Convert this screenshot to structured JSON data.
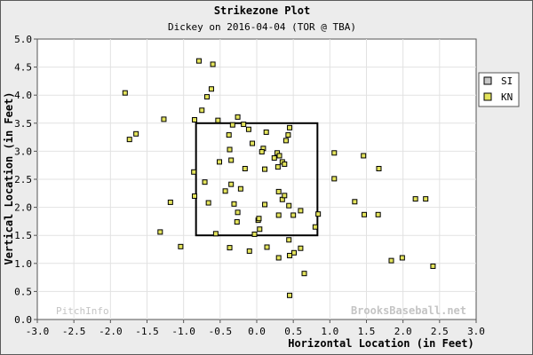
{
  "chart_data": {
    "type": "scatter",
    "title": "Strikezone Plot",
    "subtitle": "Dickey on 2016-04-04 (TOR @ TBA)",
    "xlabel": "Horizontal Location (in Feet)",
    "ylabel": "Vertical Location (in Feet)",
    "xlim": [
      -3.0,
      3.0
    ],
    "ylim": [
      0.0,
      5.0
    ],
    "x_ticks": [
      "-3.0",
      "-2.5",
      "-2.0",
      "-1.5",
      "-1.0",
      "-0.5",
      "0.0",
      "0.5",
      "1.0",
      "1.5",
      "2.0",
      "2.5",
      "3.0"
    ],
    "y_ticks": [
      "0.0",
      "0.5",
      "1.0",
      "1.5",
      "2.0",
      "2.5",
      "3.0",
      "3.5",
      "4.0",
      "4.5",
      "5.0"
    ],
    "grid": true,
    "legend_position": "right",
    "strike_zone": {
      "x": [
        -0.83,
        0.83
      ],
      "y": [
        1.5,
        3.5
      ]
    },
    "watermarks": {
      "left": "PitchInfo",
      "right": "BrooksBaseball.net"
    },
    "series": [
      {
        "name": "SI",
        "color": "#c8c8c8",
        "points": []
      },
      {
        "name": "KN",
        "color": "#e3e35c",
        "points": [
          [
            -0.79,
            4.61
          ],
          [
            -0.6,
            4.55
          ],
          [
            -0.62,
            4.11
          ],
          [
            -0.68,
            3.97
          ],
          [
            -0.75,
            3.73
          ],
          [
            -1.8,
            4.04
          ],
          [
            -1.65,
            3.31
          ],
          [
            -1.74,
            3.21
          ],
          [
            -1.27,
            3.57
          ],
          [
            -0.85,
            3.56
          ],
          [
            -0.53,
            3.55
          ],
          [
            -0.26,
            3.61
          ],
          [
            -0.33,
            3.47
          ],
          [
            -0.18,
            3.48
          ],
          [
            -0.11,
            3.39
          ],
          [
            -0.38,
            3.29
          ],
          [
            -0.06,
            3.14
          ],
          [
            0.09,
            3.05
          ],
          [
            0.07,
            2.99
          ],
          [
            0.13,
            3.34
          ],
          [
            0.45,
            3.42
          ],
          [
            0.43,
            3.29
          ],
          [
            0.4,
            3.19
          ],
          [
            0.28,
            2.97
          ],
          [
            0.31,
            2.92
          ],
          [
            0.24,
            2.88
          ],
          [
            0.35,
            2.81
          ],
          [
            0.29,
            2.72
          ],
          [
            0.38,
            2.77
          ],
          [
            0.11,
            2.68
          ],
          [
            -0.16,
            2.69
          ],
          [
            -0.35,
            2.84
          ],
          [
            -0.51,
            2.81
          ],
          [
            -0.37,
            3.03
          ],
          [
            -0.86,
            2.63
          ],
          [
            -0.71,
            2.45
          ],
          [
            -0.35,
            2.41
          ],
          [
            -0.22,
            2.33
          ],
          [
            -0.43,
            2.29
          ],
          [
            -0.85,
            2.2
          ],
          [
            -0.66,
            2.08
          ],
          [
            -0.31,
            2.06
          ],
          [
            -0.26,
            1.91
          ],
          [
            -0.27,
            1.74
          ],
          [
            -1.18,
            2.09
          ],
          [
            -1.32,
            1.56
          ],
          [
            -1.04,
            1.3
          ],
          [
            -0.56,
            1.53
          ],
          [
            -0.37,
            1.28
          ],
          [
            -0.03,
            1.52
          ],
          [
            0.04,
            1.61
          ],
          [
            0.02,
            1.77
          ],
          [
            0.03,
            1.8
          ],
          [
            0.3,
            2.28
          ],
          [
            0.35,
            2.14
          ],
          [
            0.38,
            2.21
          ],
          [
            0.44,
            2.03
          ],
          [
            0.11,
            2.05
          ],
          [
            0.3,
            1.86
          ],
          [
            0.5,
            1.86
          ],
          [
            0.6,
            1.94
          ],
          [
            0.8,
            1.65
          ],
          [
            0.84,
            1.88
          ],
          [
            0.6,
            1.27
          ],
          [
            0.51,
            1.19
          ],
          [
            0.44,
            1.42
          ],
          [
            0.3,
            1.1
          ],
          [
            0.45,
            1.14
          ],
          [
            0.14,
            1.29
          ],
          [
            -0.1,
            1.22
          ],
          [
            0.65,
            0.82
          ],
          [
            0.45,
            0.43
          ],
          [
            1.06,
            2.97
          ],
          [
            1.06,
            2.51
          ],
          [
            1.46,
            2.92
          ],
          [
            1.67,
            2.69
          ],
          [
            1.34,
            2.1
          ],
          [
            1.47,
            1.87
          ],
          [
            1.66,
            1.87
          ],
          [
            2.17,
            2.15
          ],
          [
            2.31,
            2.15
          ],
          [
            1.84,
            1.05
          ],
          [
            1.99,
            1.1
          ],
          [
            2.41,
            0.95
          ]
        ]
      }
    ]
  }
}
